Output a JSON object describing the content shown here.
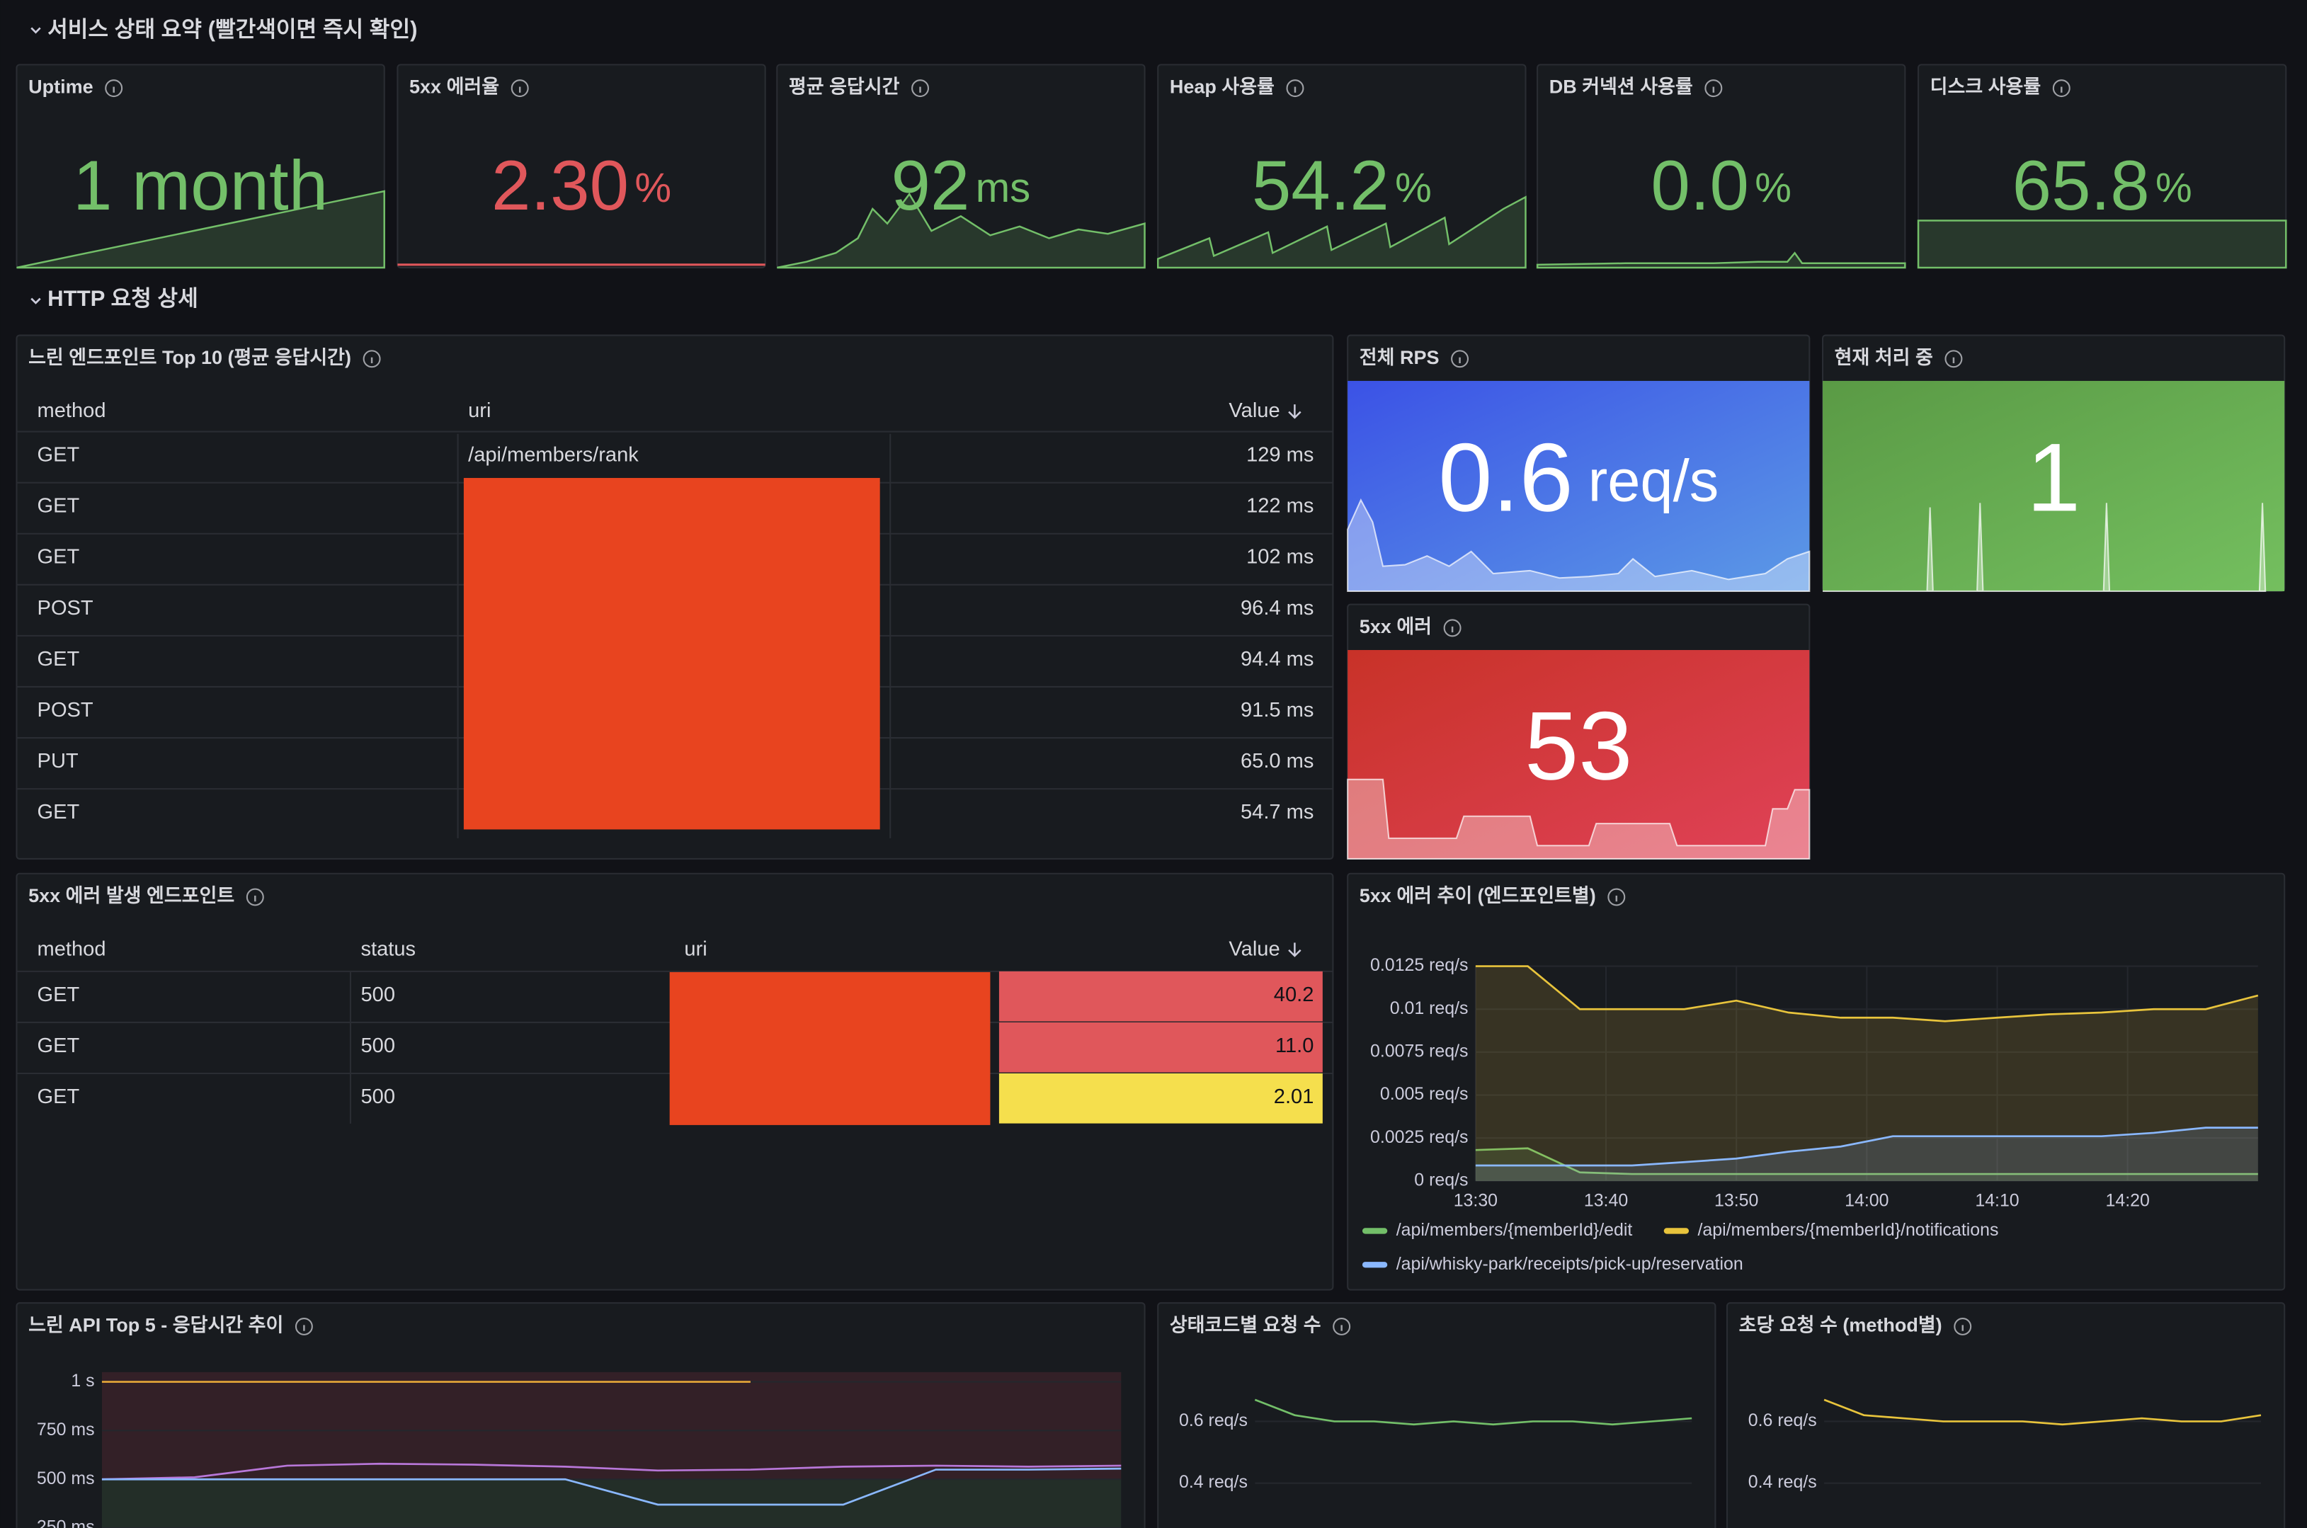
{
  "sections": [
    {
      "title": "서비스 상태 요약 (빨간색이면 즉시 확인)"
    },
    {
      "title": "HTTP 요청 상세"
    }
  ],
  "stats": [
    {
      "title": "Uptime",
      "value": "1 month",
      "color": "#73bf69"
    },
    {
      "title": "5xx 에러율",
      "value": "2.30",
      "unit": "%",
      "color": "#e0575b"
    },
    {
      "title": "평균 응답시간",
      "value": "92",
      "unit": "ms",
      "color": "#73bf69"
    },
    {
      "title": "Heap 사용률",
      "value": "54.2",
      "unit": "%",
      "color": "#73bf69"
    },
    {
      "title": "DB 커넥션 사용률",
      "value": "0.0",
      "unit": "%",
      "color": "#73bf69"
    },
    {
      "title": "디스크 사용률",
      "value": "65.8",
      "unit": "%",
      "color": "#73bf69"
    }
  ],
  "rps": {
    "title": "전체 RPS",
    "value": "0.6",
    "unit": "req/s"
  },
  "in_flight": {
    "title": "현재 처리 중",
    "value": "1"
  },
  "errors": {
    "title": "5xx 에러",
    "value": "53"
  },
  "slow_endpoints": {
    "title": "느린 엔드포인트 Top 10 (평균 응답시간)",
    "columns": [
      "method",
      "uri",
      "Value"
    ],
    "rows": [
      {
        "method": "GET",
        "uri": "/api/members/rank",
        "value": "129 ms"
      },
      {
        "method": "GET",
        "value": "122 ms"
      },
      {
        "method": "GET",
        "value": "102 ms"
      },
      {
        "method": "POST",
        "value": "96.4 ms"
      },
      {
        "method": "GET",
        "value": "94.4 ms"
      },
      {
        "method": "POST",
        "value": "91.5 ms"
      },
      {
        "method": "PUT",
        "value": "65.0 ms"
      },
      {
        "method": "GET",
        "value": "54.7 ms"
      }
    ]
  },
  "error_endpoints": {
    "title": "5xx 에러 발생 엔드포인트",
    "columns": [
      "method",
      "status",
      "uri",
      "Value"
    ],
    "rows": [
      {
        "method": "GET",
        "status": "500",
        "value": "40.2",
        "color": "#e0575b"
      },
      {
        "method": "GET",
        "status": "500",
        "value": "11.0",
        "color": "#e0575b"
      },
      {
        "method": "GET",
        "status": "500",
        "value": "2.01",
        "color": "#f5df4d"
      }
    ]
  },
  "error_trend": {
    "type": "line",
    "title": "5xx 에러 추이 (엔드포인트별)",
    "x": [
      810,
      814,
      818,
      822,
      826,
      830,
      834,
      838,
      842,
      846,
      850,
      854,
      858,
      862,
      866,
      870
    ],
    "xlim": [
      810,
      870
    ],
    "xticks": [
      {
        "value": 810,
        "label": "13:30"
      },
      {
        "value": 820,
        "label": "13:40"
      },
      {
        "value": 830,
        "label": "13:50"
      },
      {
        "value": 840,
        "label": "14:00"
      },
      {
        "value": 850,
        "label": "14:10"
      },
      {
        "value": 860,
        "label": "14:20"
      }
    ],
    "ylim": [
      0,
      0.0125
    ],
    "yticks": [
      {
        "value": 0,
        "label": "0 req/s"
      },
      {
        "value": 0.0025,
        "label": "0.0025 req/s"
      },
      {
        "value": 0.005,
        "label": "0.005 req/s"
      },
      {
        "value": 0.0075,
        "label": "0.0075 req/s"
      },
      {
        "value": 0.01,
        "label": "0.01 req/s"
      },
      {
        "value": 0.0125,
        "label": "0.0125 req/s"
      }
    ],
    "series": [
      {
        "name": "/api/members/{memberId}/edit",
        "color": "#73bf69",
        "values": [
          0.0018,
          0.0019,
          0.0005,
          0.0004,
          0.0004,
          0.0004,
          0.0004,
          0.0004,
          0.0004,
          0.0004,
          0.0004,
          0.0004,
          0.0004,
          0.0004,
          0.0004,
          0.0004
        ]
      },
      {
        "name": "/api/members/{memberId}/notifications",
        "color": "#e8c43c",
        "values": [
          0.0125,
          0.0125,
          0.01,
          0.01,
          0.01,
          0.0105,
          0.0098,
          0.0095,
          0.0095,
          0.0093,
          0.0095,
          0.0097,
          0.0098,
          0.01,
          0.01,
          0.0108
        ]
      },
      {
        "name": "/api/whisky-park/receipts/pick-up/reservation",
        "color": "#8ab8ff",
        "values": [
          0.0009,
          0.0009,
          0.0009,
          0.0009,
          0.0011,
          0.0013,
          0.0017,
          0.002,
          0.0026,
          0.0026,
          0.0026,
          0.0026,
          0.0026,
          0.0028,
          0.0031,
          0.0031
        ]
      }
    ]
  },
  "slow_trend": {
    "type": "line",
    "title": "느린 API Top 5 - 응답시간 추이",
    "ylim": [
      250,
      1050
    ],
    "yticks": [
      {
        "value": 1000,
        "label": "1 s"
      },
      {
        "value": 750,
        "label": "750 ms"
      },
      {
        "value": 500,
        "label": "500 ms"
      },
      {
        "value": 250,
        "label": "250 ms"
      }
    ],
    "series": [
      {
        "color": "#e8a838",
        "values": [
          1000,
          1000,
          1000,
          1000,
          1000,
          1000,
          1000,
          1000,
          null,
          null,
          null,
          null
        ]
      },
      {
        "color": "#b877d9",
        "values": [
          500,
          510,
          570,
          580,
          575,
          565,
          545,
          550,
          565,
          570,
          565,
          570
        ]
      },
      {
        "color": "#8ab8ff",
        "values": [
          500,
          500,
          500,
          500,
          500,
          500,
          370,
          370,
          370,
          550,
          550,
          555
        ]
      }
    ]
  },
  "status_trend": {
    "type": "line",
    "title": "상태코드별 요청 수",
    "ylim": [
      0.25,
      0.75
    ],
    "yticks": [
      {
        "value": 0.6,
        "label": "0.6 req/s"
      },
      {
        "value": 0.4,
        "label": "0.4 req/s"
      }
    ],
    "series": [
      {
        "color": "#73bf69",
        "values": [
          0.67,
          0.62,
          0.6,
          0.6,
          0.59,
          0.6,
          0.59,
          0.6,
          0.6,
          0.59,
          0.6,
          0.61
        ]
      }
    ]
  },
  "method_trend": {
    "type": "line",
    "title": "초당 요청 수 (method별)",
    "ylim": [
      0.25,
      0.75
    ],
    "yticks": [
      {
        "value": 0.6,
        "label": "0.6 req/s"
      },
      {
        "value": 0.4,
        "label": "0.4 req/s"
      }
    ],
    "series": [
      {
        "color": "#e8c43c",
        "values": [
          0.67,
          0.62,
          0.61,
          0.6,
          0.6,
          0.6,
          0.59,
          0.6,
          0.61,
          0.6,
          0.6,
          0.62
        ]
      }
    ]
  }
}
